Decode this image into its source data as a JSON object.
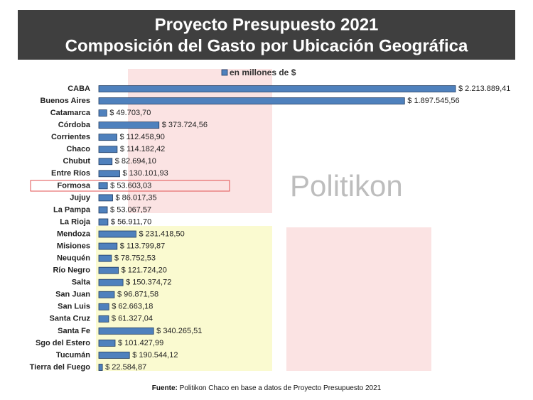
{
  "chart_data": {
    "type": "hbar",
    "title": [
      "Proyecto Presupuesto 2021",
      "Composición del Gasto por Ubicación Geográfica"
    ],
    "categories": [
      "CABA",
      "Buenos Aires",
      "Catamarca",
      "Córdoba",
      "Corrientes",
      "Chaco",
      "Chubut",
      "Entre Ríos",
      "Formosa",
      "Jujuy",
      "La Pampa",
      "La Rioja",
      "Mendoza",
      "Misiones",
      "Neuquén",
      "Río Negro",
      "Salta",
      "San Juan",
      "San Luis",
      "Santa Cruz",
      "Santa Fe",
      "Sgo del Estero",
      "Tucumán",
      "Tierra del Fuego"
    ],
    "series": [
      {
        "name": "en millones de $",
        "color": "#4f81bd",
        "values": [
          2213889.41,
          1897545.56,
          49703.7,
          373724.56,
          112458.9,
          114182.42,
          82694.1,
          130101.93,
          53603.03,
          86017.35,
          53067.57,
          56911.7,
          231418.5,
          113799.87,
          78752.53,
          121724.2,
          150374.72,
          96871.58,
          62663.18,
          61327.04,
          340265.51,
          101427.99,
          190544.12,
          22584.87
        ],
        "value_labels": [
          "$ 2.213.889,41",
          "$ 1.897.545,56",
          "$ 49.703,70",
          "$ 373.724,56",
          "$ 112.458,90",
          "$ 114.182,42",
          "$ 82.694,10",
          "$ 130.101,93",
          "$ 53.603,03",
          "$ 86.017,35",
          "$ 53.067,57",
          "$ 56.911,70",
          "$ 231.418,50",
          "$ 113.799,87",
          "$ 78.752,53",
          "$ 121.724,20",
          "$ 150.374,72",
          "$ 96.871,58",
          "$ 62.663,18",
          "$ 61.327,04",
          "$ 340.265,51",
          "$ 101.427,99",
          "$ 190.544,12",
          "$ 22.584,87"
        ]
      }
    ],
    "watermark": "Politikon",
    "source_label": "Fuente:",
    "source": "Politikon Chaco en base a datos de Proyecto Presupuesto 2021"
  }
}
